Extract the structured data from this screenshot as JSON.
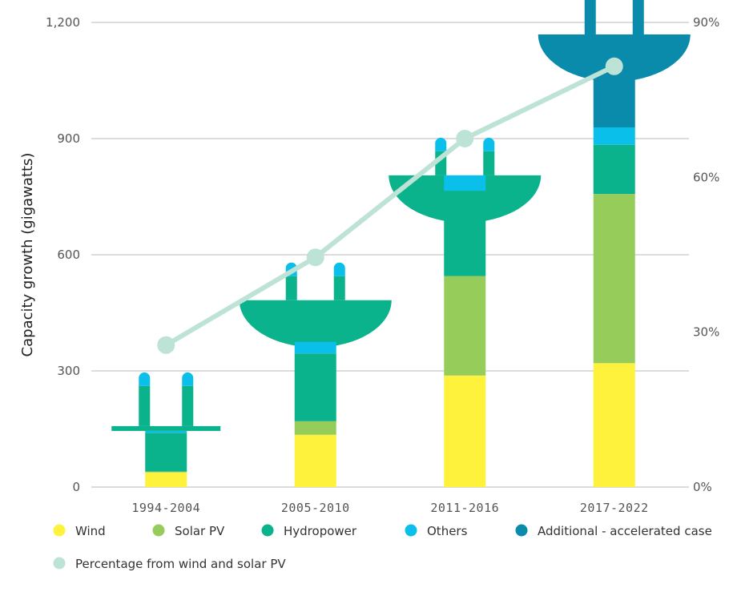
{
  "chart_data": {
    "type": "bar",
    "stacked": true,
    "categories": [
      "1994-2004",
      "2005-2010",
      "2011-2016",
      "2017-2022"
    ],
    "ylabel": "Capacity growth (gigawatts)",
    "ylim": [
      0,
      1200
    ],
    "yticks": [
      0,
      300,
      600,
      900,
      1200
    ],
    "yticklabels": [
      "0",
      "300",
      "600",
      "900",
      "1,200"
    ],
    "y2lim": [
      0,
      90
    ],
    "y2ticks": [
      0,
      30,
      60,
      90
    ],
    "y2ticklabels": [
      "0%",
      "30%",
      "60%",
      "90%"
    ],
    "grid": true,
    "legend_position": "bottom",
    "series": [
      {
        "name": "Wind",
        "color": "#fff23c",
        "values": [
          38,
          135,
          288,
          320
        ]
      },
      {
        "name": "Solar PV",
        "color": "#96cd5a",
        "values": [
          2,
          35,
          257,
          437
        ]
      },
      {
        "name": "Hydropower",
        "color": "#0ab38b",
        "values": [
          100,
          175,
          220,
          127
        ]
      },
      {
        "name": "Others",
        "color": "#0ac0ea",
        "values": [
          5,
          30,
          40,
          45
        ]
      },
      {
        "name": "Additional - accelerated case",
        "color": "#0a8bab",
        "values": [
          0,
          0,
          0,
          240
        ]
      }
    ],
    "line_series": {
      "name": "Percentage from wind and solar PV",
      "color": "#bde2d6",
      "axis": "right",
      "values": [
        27.5,
        44.5,
        67.5,
        81.5
      ]
    }
  }
}
